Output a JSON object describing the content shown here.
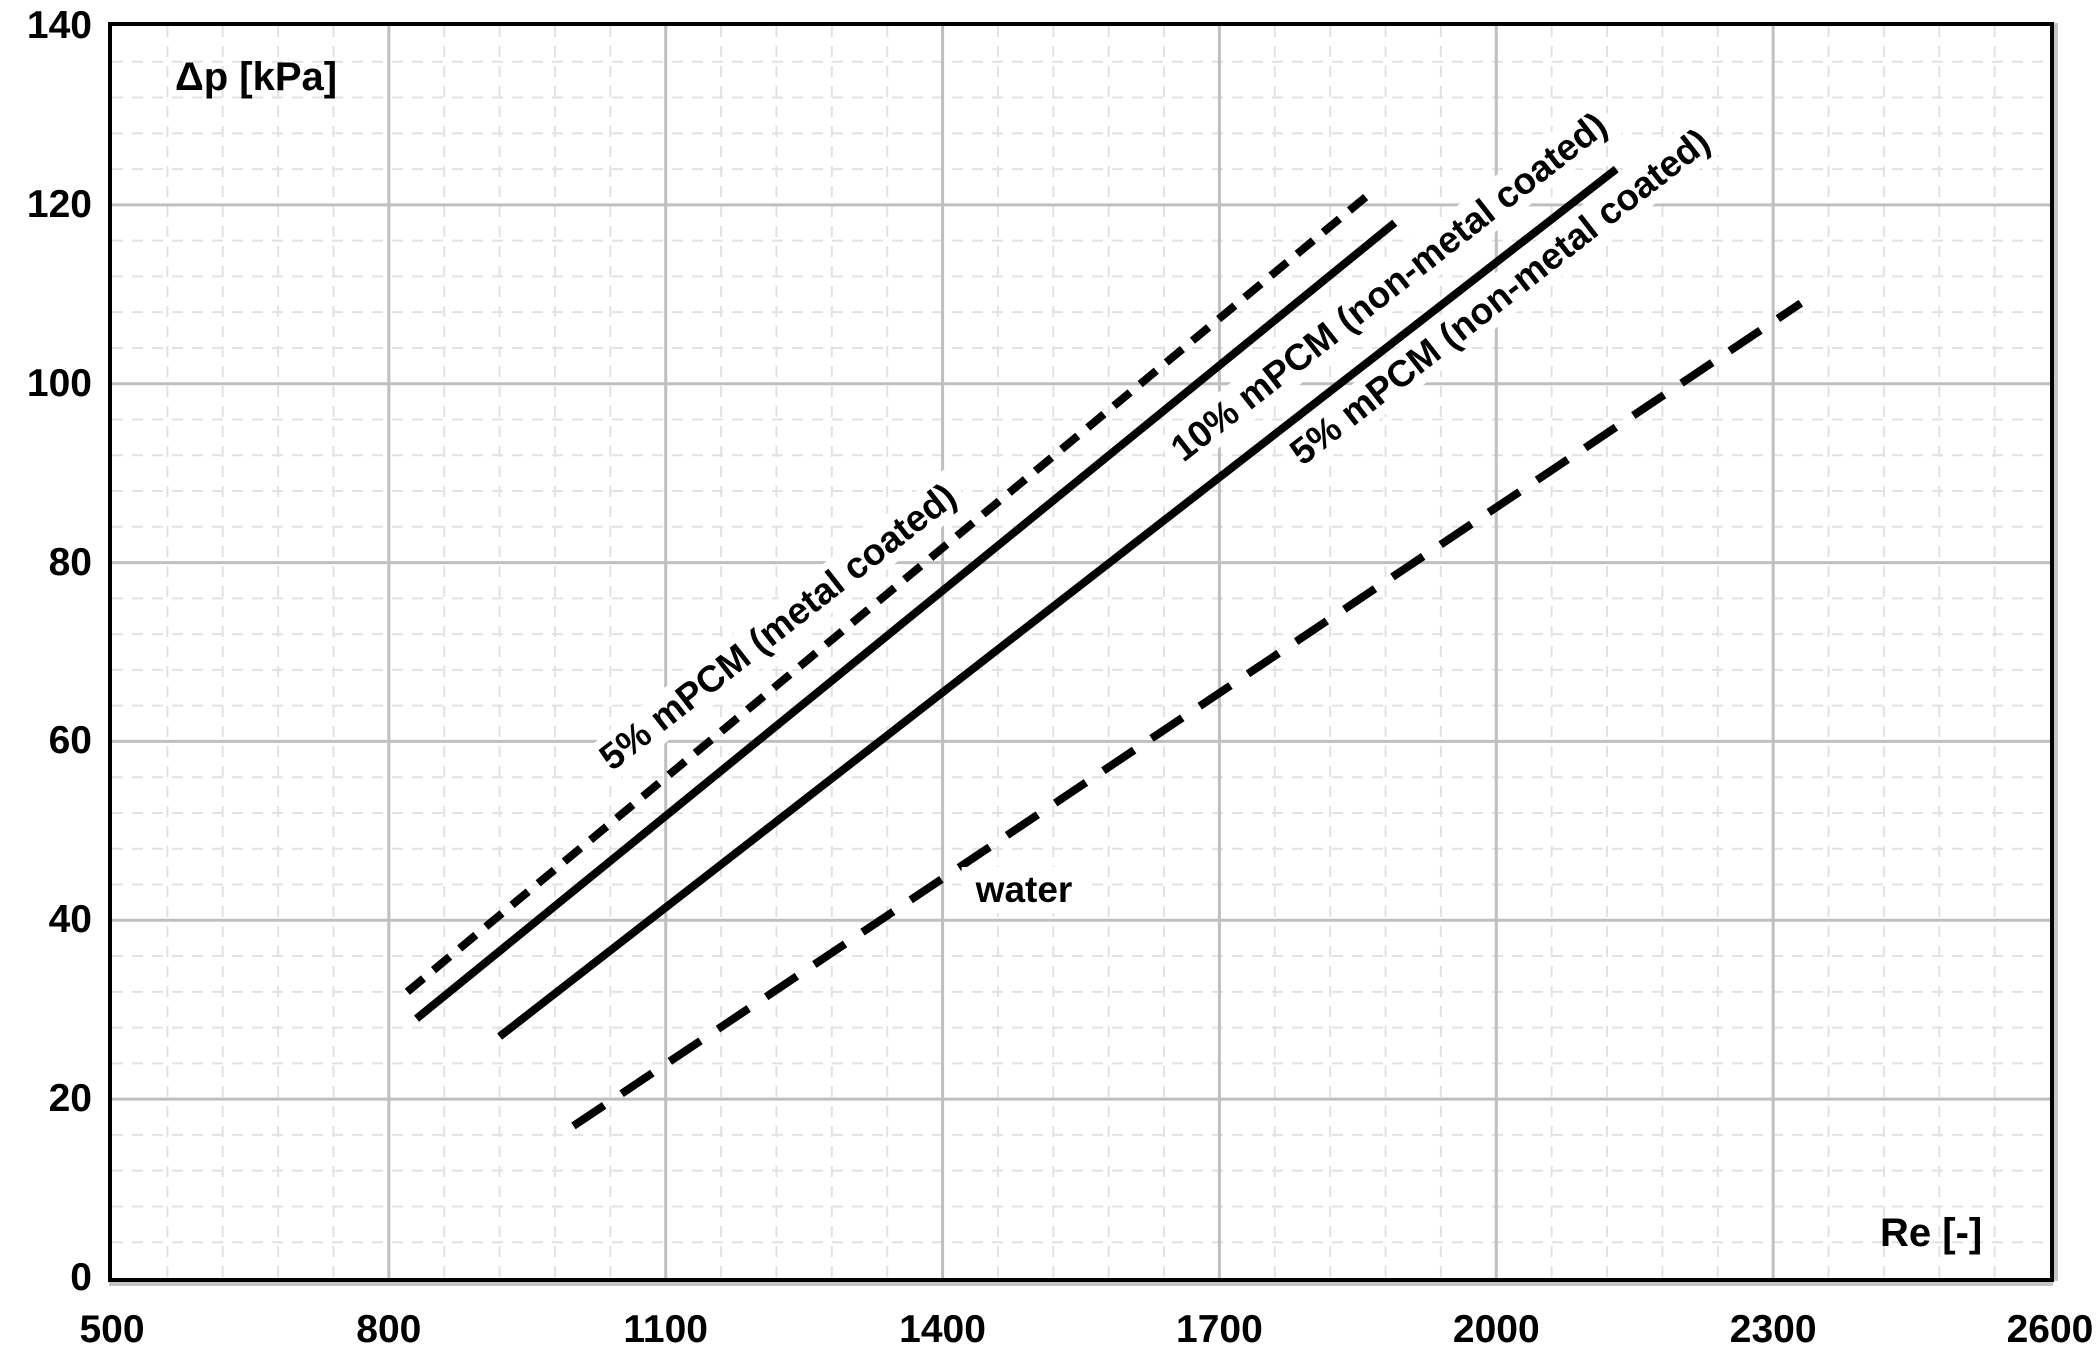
{
  "chart_data": {
    "type": "line",
    "title": "",
    "xlabel": "Re [-]",
    "ylabel": "Δp [kPa]",
    "xlim": [
      500,
      2600
    ],
    "ylim": [
      0,
      140
    ],
    "x_ticks": [
      500,
      800,
      1100,
      1400,
      1700,
      2000,
      2300,
      2600
    ],
    "y_ticks": [
      0,
      20,
      40,
      60,
      80,
      100,
      120,
      140
    ],
    "grid": {
      "major": "on",
      "minor": "on",
      "x_major_step": 300,
      "y_major_step": 20,
      "x_minor_step": 60,
      "y_minor_step": 4
    },
    "legend_position": "labels-on-lines",
    "series": [
      {
        "name": "5% mPCM (metal coated)",
        "line_style": "short-dash",
        "points": [
          [
            820,
            32
          ],
          [
            1860,
            121
          ]
        ]
      },
      {
        "name": "10% mPCM (non-metal coated)",
        "line_style": "solid",
        "points": [
          [
            830,
            29
          ],
          [
            1890,
            118
          ]
        ]
      },
      {
        "name": "5% mPCM (non-metal coated)",
        "line_style": "solid",
        "points": [
          [
            920,
            27
          ],
          [
            2130,
            124
          ]
        ]
      },
      {
        "name": "water",
        "line_style": "long-dash",
        "points": [
          [
            1000,
            17
          ],
          [
            2330,
            109
          ]
        ]
      }
    ],
    "colors": {
      "line": "#000000",
      "grid_major": "#bfbfbf",
      "grid_minor": "#e2e2e2",
      "axis": "#000000"
    }
  }
}
